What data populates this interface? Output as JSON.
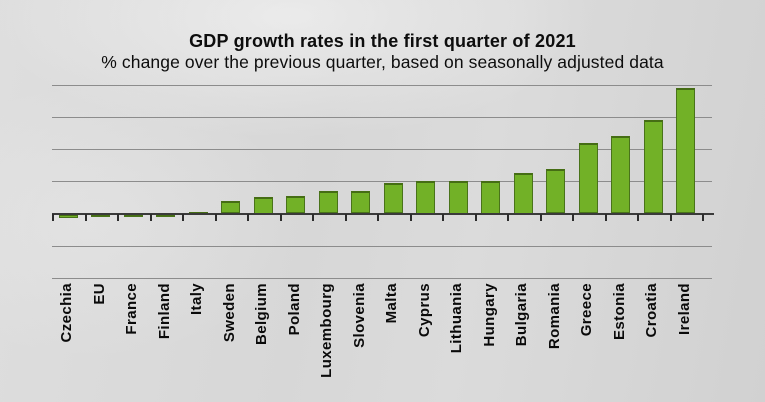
{
  "header": {
    "title": "GDP growth rates in the first quarter of 2021",
    "subtitle": "% change over the previous quarter, based on seasonally adjusted data"
  },
  "colors": {
    "bar_fill": "#72b127",
    "bar_border": "#49731a",
    "gridline": "#8c8c8c",
    "axis_line": "#3a3a3a",
    "background": "#d8d8d8",
    "text": "#0d0d0d"
  },
  "chart_data": {
    "type": "bar",
    "title": "GDP growth rates in the first quarter of 2021",
    "subtitle": "% change over the previous quarter, based on seasonally adjusted data",
    "categories": [
      "Czechia",
      "EU",
      "France",
      "Finland",
      "Italy",
      "Sweden",
      "Belgium",
      "Poland",
      "Luxembourg",
      "Slovenia",
      "Malta",
      "Cyprus",
      "Lithuania",
      "Hungary",
      "Bulgaria",
      "Romania",
      "Greece",
      "Estonia",
      "Croatia",
      "Ireland"
    ],
    "values": [
      -0.3,
      -0.1,
      -0.1,
      -0.1,
      0.1,
      0.8,
      1.0,
      1.1,
      1.4,
      1.4,
      1.9,
      2.0,
      2.0,
      2.0,
      2.5,
      2.8,
      4.4,
      4.8,
      5.8,
      7.8
    ],
    "unit": "%",
    "xlabel": "",
    "ylabel": "",
    "ylim": [
      -4,
      8
    ],
    "gridline_step": 2,
    "grid": "horizontal",
    "y_tick_labels_visible": false,
    "x_tick_label_rotation": 90,
    "legend": "none",
    "bar_color": "#72b127"
  }
}
